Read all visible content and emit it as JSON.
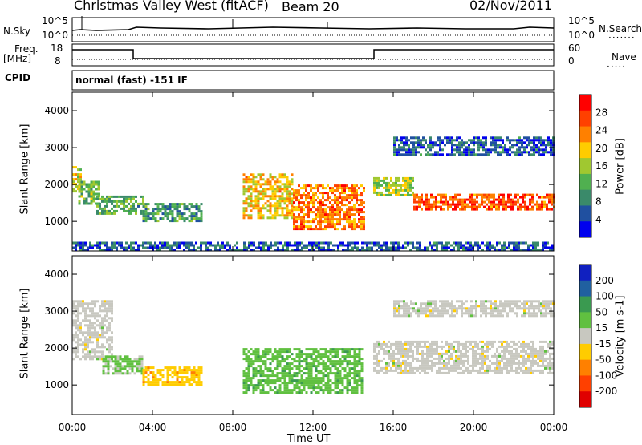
{
  "header": {
    "title": "Christmas Valley West (fitACF)",
    "beam": "Beam 20",
    "date": "02/Nov/2011"
  },
  "strip_labels": {
    "nsky": "N.Sky",
    "nsky_ticks": [
      "10^5",
      "10^0"
    ],
    "nsearch": "N.Search",
    "freq_line1": "Freq.",
    "freq_line2": "[MHz]",
    "freq_ticks": [
      "18",
      "8"
    ],
    "nave": "Nave",
    "nave_ticks": [
      "60",
      "0"
    ],
    "cpid": "CPID",
    "cpid_text": "normal (fast) -151 IF"
  },
  "colors": {
    "power_scale": [
      "#0000ee",
      "#2050a0",
      "#3a8a6a",
      "#50b050",
      "#a0c830",
      "#ffcc00",
      "#ff8000",
      "#ff4000",
      "#ff0000"
    ],
    "velocity_scale": [
      "#1020c0",
      "#2060a0",
      "#3a9a50",
      "#60c040",
      "#c8c8c0",
      "#ffcc00",
      "#ff8000",
      "#ff4000",
      "#e00000"
    ]
  },
  "chart_data": [
    {
      "type": "heatmap",
      "name": "power",
      "ylabel": "Slant Range [km]",
      "yticks": [
        "1000",
        "2000",
        "3000",
        "4000"
      ],
      "ylim": [
        200,
        4500
      ],
      "xlim": [
        "00:00",
        "24:00"
      ],
      "colorbar_label": "Power [dB]",
      "colorbar_ticks": [
        "28",
        "24",
        "20",
        "16",
        "12",
        "8",
        "4"
      ],
      "colorbar_range": [
        0,
        32
      ],
      "bands": [
        {
          "t": [
            0,
            0.4
          ],
          "r": [
            1800,
            2500
          ],
          "v": 18
        },
        {
          "t": [
            0.3,
            1.3
          ],
          "r": [
            1500,
            2100
          ],
          "v": 14
        },
        {
          "t": [
            1.2,
            3.5
          ],
          "r": [
            1200,
            1700
          ],
          "v": 12
        },
        {
          "t": [
            3.5,
            6.5
          ],
          "r": [
            1000,
            1500
          ],
          "v": 10
        },
        {
          "t": [
            8.5,
            11
          ],
          "r": [
            1100,
            2300
          ],
          "v": 20
        },
        {
          "t": [
            11,
            14.5
          ],
          "r": [
            800,
            2000
          ],
          "v": 24
        },
        {
          "t": [
            15,
            17
          ],
          "r": [
            1700,
            2200
          ],
          "v": 16
        },
        {
          "t": [
            17,
            24
          ],
          "r": [
            1350,
            1750
          ],
          "v": 26
        },
        {
          "t": [
            16,
            24
          ],
          "r": [
            2800,
            3300
          ],
          "v": 6
        },
        {
          "t": [
            0,
            24
          ],
          "r": [
            250,
            450
          ],
          "v": 6
        }
      ]
    },
    {
      "type": "heatmap",
      "name": "velocity",
      "ylabel": "Slant Range [km]",
      "yticks": [
        "1000",
        "2000",
        "3000",
        "4000"
      ],
      "ylim": [
        200,
        4500
      ],
      "xlim": [
        "00:00",
        "24:00"
      ],
      "colorbar_label": "Velocity [m s-1]",
      "colorbar_ticks": [
        "200",
        "100",
        "50",
        "15",
        "-15",
        "-50",
        "-100",
        "-200"
      ],
      "colorbar_range": [
        -250,
        250
      ],
      "bands": [
        {
          "t": [
            0,
            2
          ],
          "r": [
            1700,
            3300
          ],
          "v": 0
        },
        {
          "t": [
            1.5,
            3.5
          ],
          "r": [
            1300,
            1800
          ],
          "v": 40
        },
        {
          "t": [
            3.5,
            6.5
          ],
          "r": [
            1000,
            1500
          ],
          "v": -60
        },
        {
          "t": [
            8.5,
            14.5
          ],
          "r": [
            800,
            2000
          ],
          "v": 60
        },
        {
          "t": [
            15,
            24
          ],
          "r": [
            1300,
            2200
          ],
          "v": 0
        },
        {
          "t": [
            16,
            24
          ],
          "r": [
            2900,
            3300
          ],
          "v": 0
        }
      ]
    }
  ],
  "xaxis": {
    "ticks": [
      "00:00",
      "04:00",
      "08:00",
      "12:00",
      "16:00",
      "20:00",
      "00:00"
    ],
    "label": "Time UT"
  }
}
